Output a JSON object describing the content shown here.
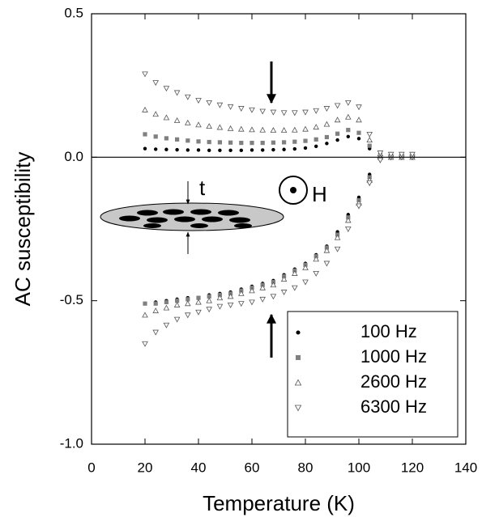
{
  "chart_data": {
    "type": "scatter",
    "x_label": "Temperature (K)",
    "y_label": "AC susceptibility",
    "xlim": [
      0,
      140
    ],
    "ylim": [
      -1.0,
      0.5
    ],
    "xticks": [
      0,
      20,
      40,
      60,
      80,
      100,
      120,
      140
    ],
    "yticks": [
      {
        "value": -1.0,
        "label": "-1.0"
      },
      -0.5,
      {
        "value": 0.0,
        "label": "0.0"
      },
      0.5
    ],
    "annotations": [
      "t",
      "H"
    ],
    "x": [
      20,
      24,
      28,
      32,
      36,
      40,
      44,
      48,
      52,
      56,
      60,
      64,
      68,
      72,
      76,
      80,
      84,
      88,
      92,
      96,
      100,
      104,
      108,
      112,
      116,
      120
    ],
    "series": [
      {
        "name": "100 Hz",
        "marker": "circle",
        "color": "#000000",
        "values": [
          -0.51,
          -0.505,
          -0.5,
          -0.495,
          -0.49,
          -0.49,
          -0.48,
          -0.475,
          -0.47,
          -0.46,
          -0.45,
          -0.44,
          -0.43,
          -0.41,
          -0.39,
          -0.37,
          -0.34,
          -0.31,
          -0.26,
          -0.2,
          -0.14,
          -0.06,
          0.0,
          0.0,
          0.0,
          0.0
        ],
        "values_upper": [
          0.03,
          0.028,
          0.027,
          0.026,
          0.025,
          0.025,
          0.024,
          0.024,
          0.024,
          0.024,
          0.025,
          0.025,
          0.026,
          0.027,
          0.029,
          0.032,
          0.038,
          0.048,
          0.06,
          0.072,
          0.065,
          0.03,
          0.005,
          0.0,
          0.0,
          0.0
        ]
      },
      {
        "name": "1000 Hz",
        "marker": "square",
        "color": "#808080",
        "values": [
          -0.51,
          -0.51,
          -0.505,
          -0.5,
          -0.495,
          -0.49,
          -0.485,
          -0.48,
          -0.475,
          -0.465,
          -0.455,
          -0.445,
          -0.435,
          -0.415,
          -0.395,
          -0.375,
          -0.345,
          -0.315,
          -0.27,
          -0.21,
          -0.15,
          -0.07,
          0.0,
          0.0,
          0.0,
          0.0
        ],
        "values_upper": [
          0.08,
          0.072,
          0.066,
          0.062,
          0.058,
          0.055,
          0.053,
          0.052,
          0.051,
          0.05,
          0.05,
          0.05,
          0.051,
          0.052,
          0.054,
          0.057,
          0.062,
          0.07,
          0.082,
          0.095,
          0.085,
          0.04,
          0.008,
          0.005,
          0.005,
          0.005
        ]
      },
      {
        "name": "2600 Hz",
        "marker": "triangle-up",
        "color": "#555555",
        "values": [
          -0.55,
          -0.535,
          -0.525,
          -0.515,
          -0.51,
          -0.505,
          -0.5,
          -0.49,
          -0.485,
          -0.475,
          -0.465,
          -0.455,
          -0.445,
          -0.425,
          -0.405,
          -0.385,
          -0.355,
          -0.325,
          -0.28,
          -0.22,
          -0.16,
          -0.08,
          0.0,
          0.0,
          0.0,
          0.0
        ],
        "values_upper": [
          0.165,
          0.15,
          0.138,
          0.128,
          0.12,
          0.113,
          0.108,
          0.104,
          0.1,
          0.098,
          0.096,
          0.095,
          0.094,
          0.094,
          0.095,
          0.098,
          0.105,
          0.115,
          0.13,
          0.14,
          0.13,
          0.06,
          0.012,
          0.008,
          0.008,
          0.008
        ]
      },
      {
        "name": "6300 Hz",
        "marker": "triangle-down",
        "color": "#555555",
        "values": [
          -0.65,
          -0.61,
          -0.585,
          -0.565,
          -0.55,
          -0.54,
          -0.53,
          -0.52,
          -0.515,
          -0.51,
          -0.505,
          -0.495,
          -0.485,
          -0.47,
          -0.455,
          -0.435,
          -0.405,
          -0.37,
          -0.32,
          -0.25,
          -0.17,
          -0.09,
          -0.01,
          0.0,
          0.0,
          0.0
        ],
        "values_upper": [
          0.29,
          0.26,
          0.24,
          0.225,
          0.21,
          0.198,
          0.19,
          0.182,
          0.176,
          0.17,
          0.165,
          0.16,
          0.157,
          0.155,
          0.155,
          0.157,
          0.162,
          0.17,
          0.18,
          0.19,
          0.175,
          0.08,
          0.015,
          0.01,
          0.01,
          0.01
        ]
      }
    ]
  }
}
